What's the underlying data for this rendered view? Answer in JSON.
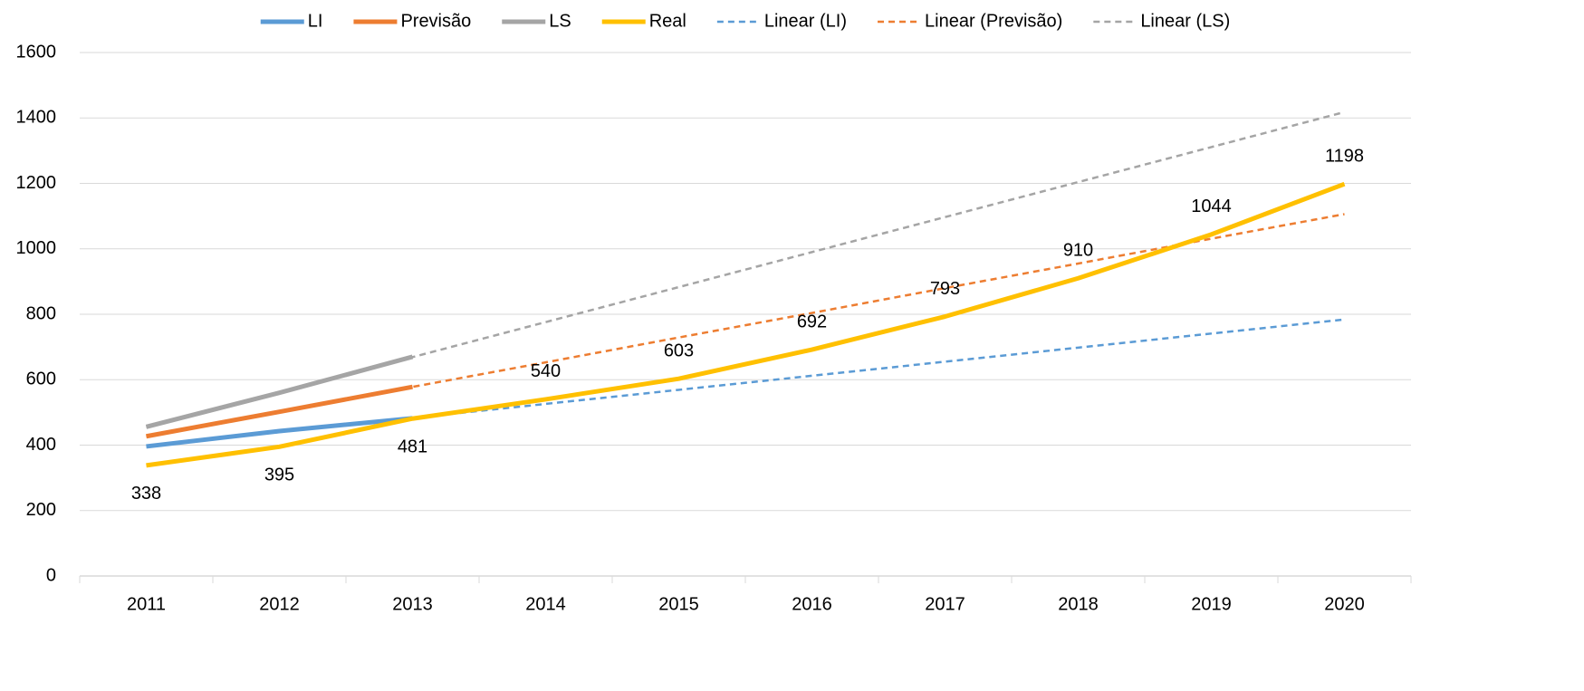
{
  "chart_data": {
    "type": "line",
    "categories": [
      "2011",
      "2012",
      "2013",
      "2014",
      "2015",
      "2016",
      "2017",
      "2018",
      "2019",
      "2020"
    ],
    "ylim": [
      0,
      1600
    ],
    "yticks": [
      0,
      200,
      400,
      600,
      800,
      1000,
      1200,
      1400,
      1600
    ],
    "grid": true,
    "legend": "top",
    "series": [
      {
        "name": "Linear (LI)",
        "color": "#5b9bd5",
        "dashed": true,
        "values": [
          397,
          440,
          483,
          526,
          569,
          612,
          655,
          698,
          741,
          784
        ]
      },
      {
        "name": "Linear (Previsão)",
        "color": "#ed7d31",
        "dashed": true,
        "values": [
          427,
          502,
          578,
          653,
          729,
          804,
          880,
          955,
          1031,
          1106
        ]
      },
      {
        "name": "Linear (LS)",
        "color": "#a5a5a5",
        "dashed": true,
        "values": [
          455,
          562,
          669,
          776,
          883,
          990,
          1097,
          1204,
          1311,
          1418
        ]
      },
      {
        "name": "LI",
        "color": "#5b9bd5",
        "values": [
          396,
          443,
          482,
          null,
          null,
          null,
          null,
          null,
          null,
          null
        ]
      },
      {
        "name": "Previsão",
        "color": "#ed7d31",
        "values": [
          427,
          502,
          578,
          null,
          null,
          null,
          null,
          null,
          null,
          null
        ]
      },
      {
        "name": "LS",
        "color": "#a5a5a5",
        "values": [
          456,
          560,
          670,
          null,
          null,
          null,
          null,
          null,
          null,
          null
        ]
      },
      {
        "name": "Real",
        "color": "#ffc000",
        "data_labels": true,
        "values": [
          338,
          395,
          481,
          540,
          603,
          692,
          793,
          910,
          1044,
          1198
        ]
      }
    ]
  }
}
